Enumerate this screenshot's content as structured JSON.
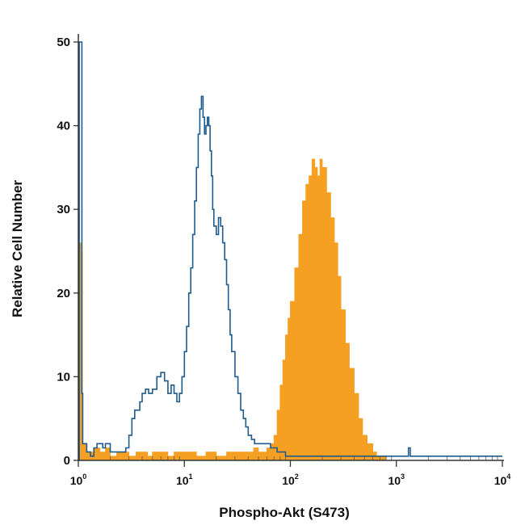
{
  "chart_data": {
    "type": "histogram",
    "title": "",
    "xlabel": "Phospho-Akt (S473)",
    "ylabel": "Relative Cell Number",
    "x_scale": "log",
    "xlim": [
      1,
      10000
    ],
    "ylim": [
      0,
      50
    ],
    "grid": false,
    "legend": "none",
    "x_tick_labels": [
      {
        "base": "10",
        "exp": "0"
      },
      {
        "base": "10",
        "exp": "1"
      },
      {
        "base": "10",
        "exp": "2"
      },
      {
        "base": "10",
        "exp": "3"
      },
      {
        "base": "10",
        "exp": "4"
      }
    ],
    "y_ticks": [
      0,
      10,
      20,
      30,
      40,
      50
    ],
    "y_tick_labels": [
      "0",
      "10",
      "20",
      "30",
      "40",
      "50"
    ],
    "series": [
      {
        "style": "filled",
        "color": "#f5a023",
        "points": [
          [
            1.0,
            0
          ],
          [
            1.03,
            26
          ],
          [
            1.06,
            25
          ],
          [
            1.09,
            2
          ],
          [
            1.2,
            1
          ],
          [
            1.4,
            1.5
          ],
          [
            1.6,
            1
          ],
          [
            1.8,
            1.5
          ],
          [
            2.0,
            0.5
          ],
          [
            2.3,
            1
          ],
          [
            2.6,
            1
          ],
          [
            3.0,
            0.5
          ],
          [
            3.5,
            1
          ],
          [
            4.0,
            1
          ],
          [
            4.5,
            0.5
          ],
          [
            5.0,
            1
          ],
          [
            6.0,
            1
          ],
          [
            7.0,
            0.5
          ],
          [
            8.0,
            1
          ],
          [
            10,
            1
          ],
          [
            13,
            0.5
          ],
          [
            16,
            1
          ],
          [
            20,
            0.5
          ],
          [
            25,
            1
          ],
          [
            30,
            1
          ],
          [
            35,
            1
          ],
          [
            40,
            1
          ],
          [
            45,
            1.5
          ],
          [
            50,
            1
          ],
          [
            55,
            1
          ],
          [
            60,
            1.5
          ],
          [
            65,
            2
          ],
          [
            70,
            3
          ],
          [
            75,
            6
          ],
          [
            80,
            9
          ],
          [
            85,
            12
          ],
          [
            90,
            15
          ],
          [
            95,
            17
          ],
          [
            100,
            19
          ],
          [
            110,
            23
          ],
          [
            120,
            27
          ],
          [
            130,
            31
          ],
          [
            140,
            33
          ],
          [
            150,
            34
          ],
          [
            160,
            36
          ],
          [
            170,
            35
          ],
          [
            180,
            34
          ],
          [
            190,
            36
          ],
          [
            200,
            35
          ],
          [
            220,
            32
          ],
          [
            240,
            29
          ],
          [
            260,
            26
          ],
          [
            280,
            22
          ],
          [
            300,
            18
          ],
          [
            330,
            14
          ],
          [
            360,
            11
          ],
          [
            400,
            8
          ],
          [
            440,
            5
          ],
          [
            480,
            3
          ],
          [
            530,
            2
          ],
          [
            600,
            1
          ],
          [
            650,
            0.5
          ],
          [
            700,
            0.5
          ],
          [
            800,
            0
          ],
          [
            10000,
            0
          ]
        ]
      },
      {
        "style": "outline",
        "color": "#1f5b8c",
        "points": [
          [
            1.0,
            0
          ],
          [
            1.02,
            50
          ],
          [
            1.05,
            50
          ],
          [
            1.08,
            8
          ],
          [
            1.1,
            2
          ],
          [
            1.2,
            1
          ],
          [
            1.3,
            0.5
          ],
          [
            1.4,
            1.5
          ],
          [
            1.5,
            2
          ],
          [
            1.6,
            2
          ],
          [
            1.7,
            1.5
          ],
          [
            1.8,
            2
          ],
          [
            2.0,
            1
          ],
          [
            2.2,
            1
          ],
          [
            2.5,
            1
          ],
          [
            2.8,
            1.5
          ],
          [
            3.0,
            3
          ],
          [
            3.2,
            5
          ],
          [
            3.4,
            6
          ],
          [
            3.6,
            6
          ],
          [
            3.8,
            7
          ],
          [
            4.0,
            8
          ],
          [
            4.3,
            8.5
          ],
          [
            4.6,
            8
          ],
          [
            5.0,
            8.5
          ],
          [
            5.5,
            10
          ],
          [
            6.0,
            10.5
          ],
          [
            6.5,
            9.5
          ],
          [
            7.0,
            8
          ],
          [
            7.5,
            9
          ],
          [
            8.0,
            8
          ],
          [
            8.5,
            7
          ],
          [
            9.0,
            8
          ],
          [
            9.5,
            10
          ],
          [
            10,
            13
          ],
          [
            10.5,
            16
          ],
          [
            11,
            20
          ],
          [
            11.5,
            23
          ],
          [
            12,
            27
          ],
          [
            12.5,
            31
          ],
          [
            13,
            35
          ],
          [
            13.5,
            39
          ],
          [
            14,
            42
          ],
          [
            14.5,
            43.5
          ],
          [
            15,
            41
          ],
          [
            15.5,
            39
          ],
          [
            16,
            40
          ],
          [
            16.5,
            41
          ],
          [
            17,
            40
          ],
          [
            17.5,
            37
          ],
          [
            18,
            34
          ],
          [
            18.5,
            30
          ],
          [
            19,
            28
          ],
          [
            20,
            27
          ],
          [
            21,
            29
          ],
          [
            22,
            28
          ],
          [
            23,
            26
          ],
          [
            24,
            24
          ],
          [
            25,
            21
          ],
          [
            26,
            18
          ],
          [
            27,
            15
          ],
          [
            28,
            13
          ],
          [
            30,
            10
          ],
          [
            32,
            8
          ],
          [
            34,
            6
          ],
          [
            36,
            5
          ],
          [
            38,
            4
          ],
          [
            40,
            3
          ],
          [
            43,
            2.5
          ],
          [
            46,
            2
          ],
          [
            50,
            2
          ],
          [
            55,
            2
          ],
          [
            60,
            2
          ],
          [
            65,
            1.5
          ],
          [
            70,
            1.5
          ],
          [
            75,
            1
          ],
          [
            80,
            1
          ],
          [
            90,
            0.5
          ],
          [
            100,
            0.5
          ],
          [
            150,
            0.5
          ],
          [
            300,
            0.5
          ],
          [
            600,
            0.5
          ],
          [
            1000,
            0.5
          ],
          [
            1200,
            0.5
          ],
          [
            1300,
            1.5
          ],
          [
            1350,
            0.5
          ],
          [
            2000,
            0.5
          ],
          [
            5000,
            0.5
          ],
          [
            10000,
            0.5
          ]
        ]
      }
    ]
  }
}
